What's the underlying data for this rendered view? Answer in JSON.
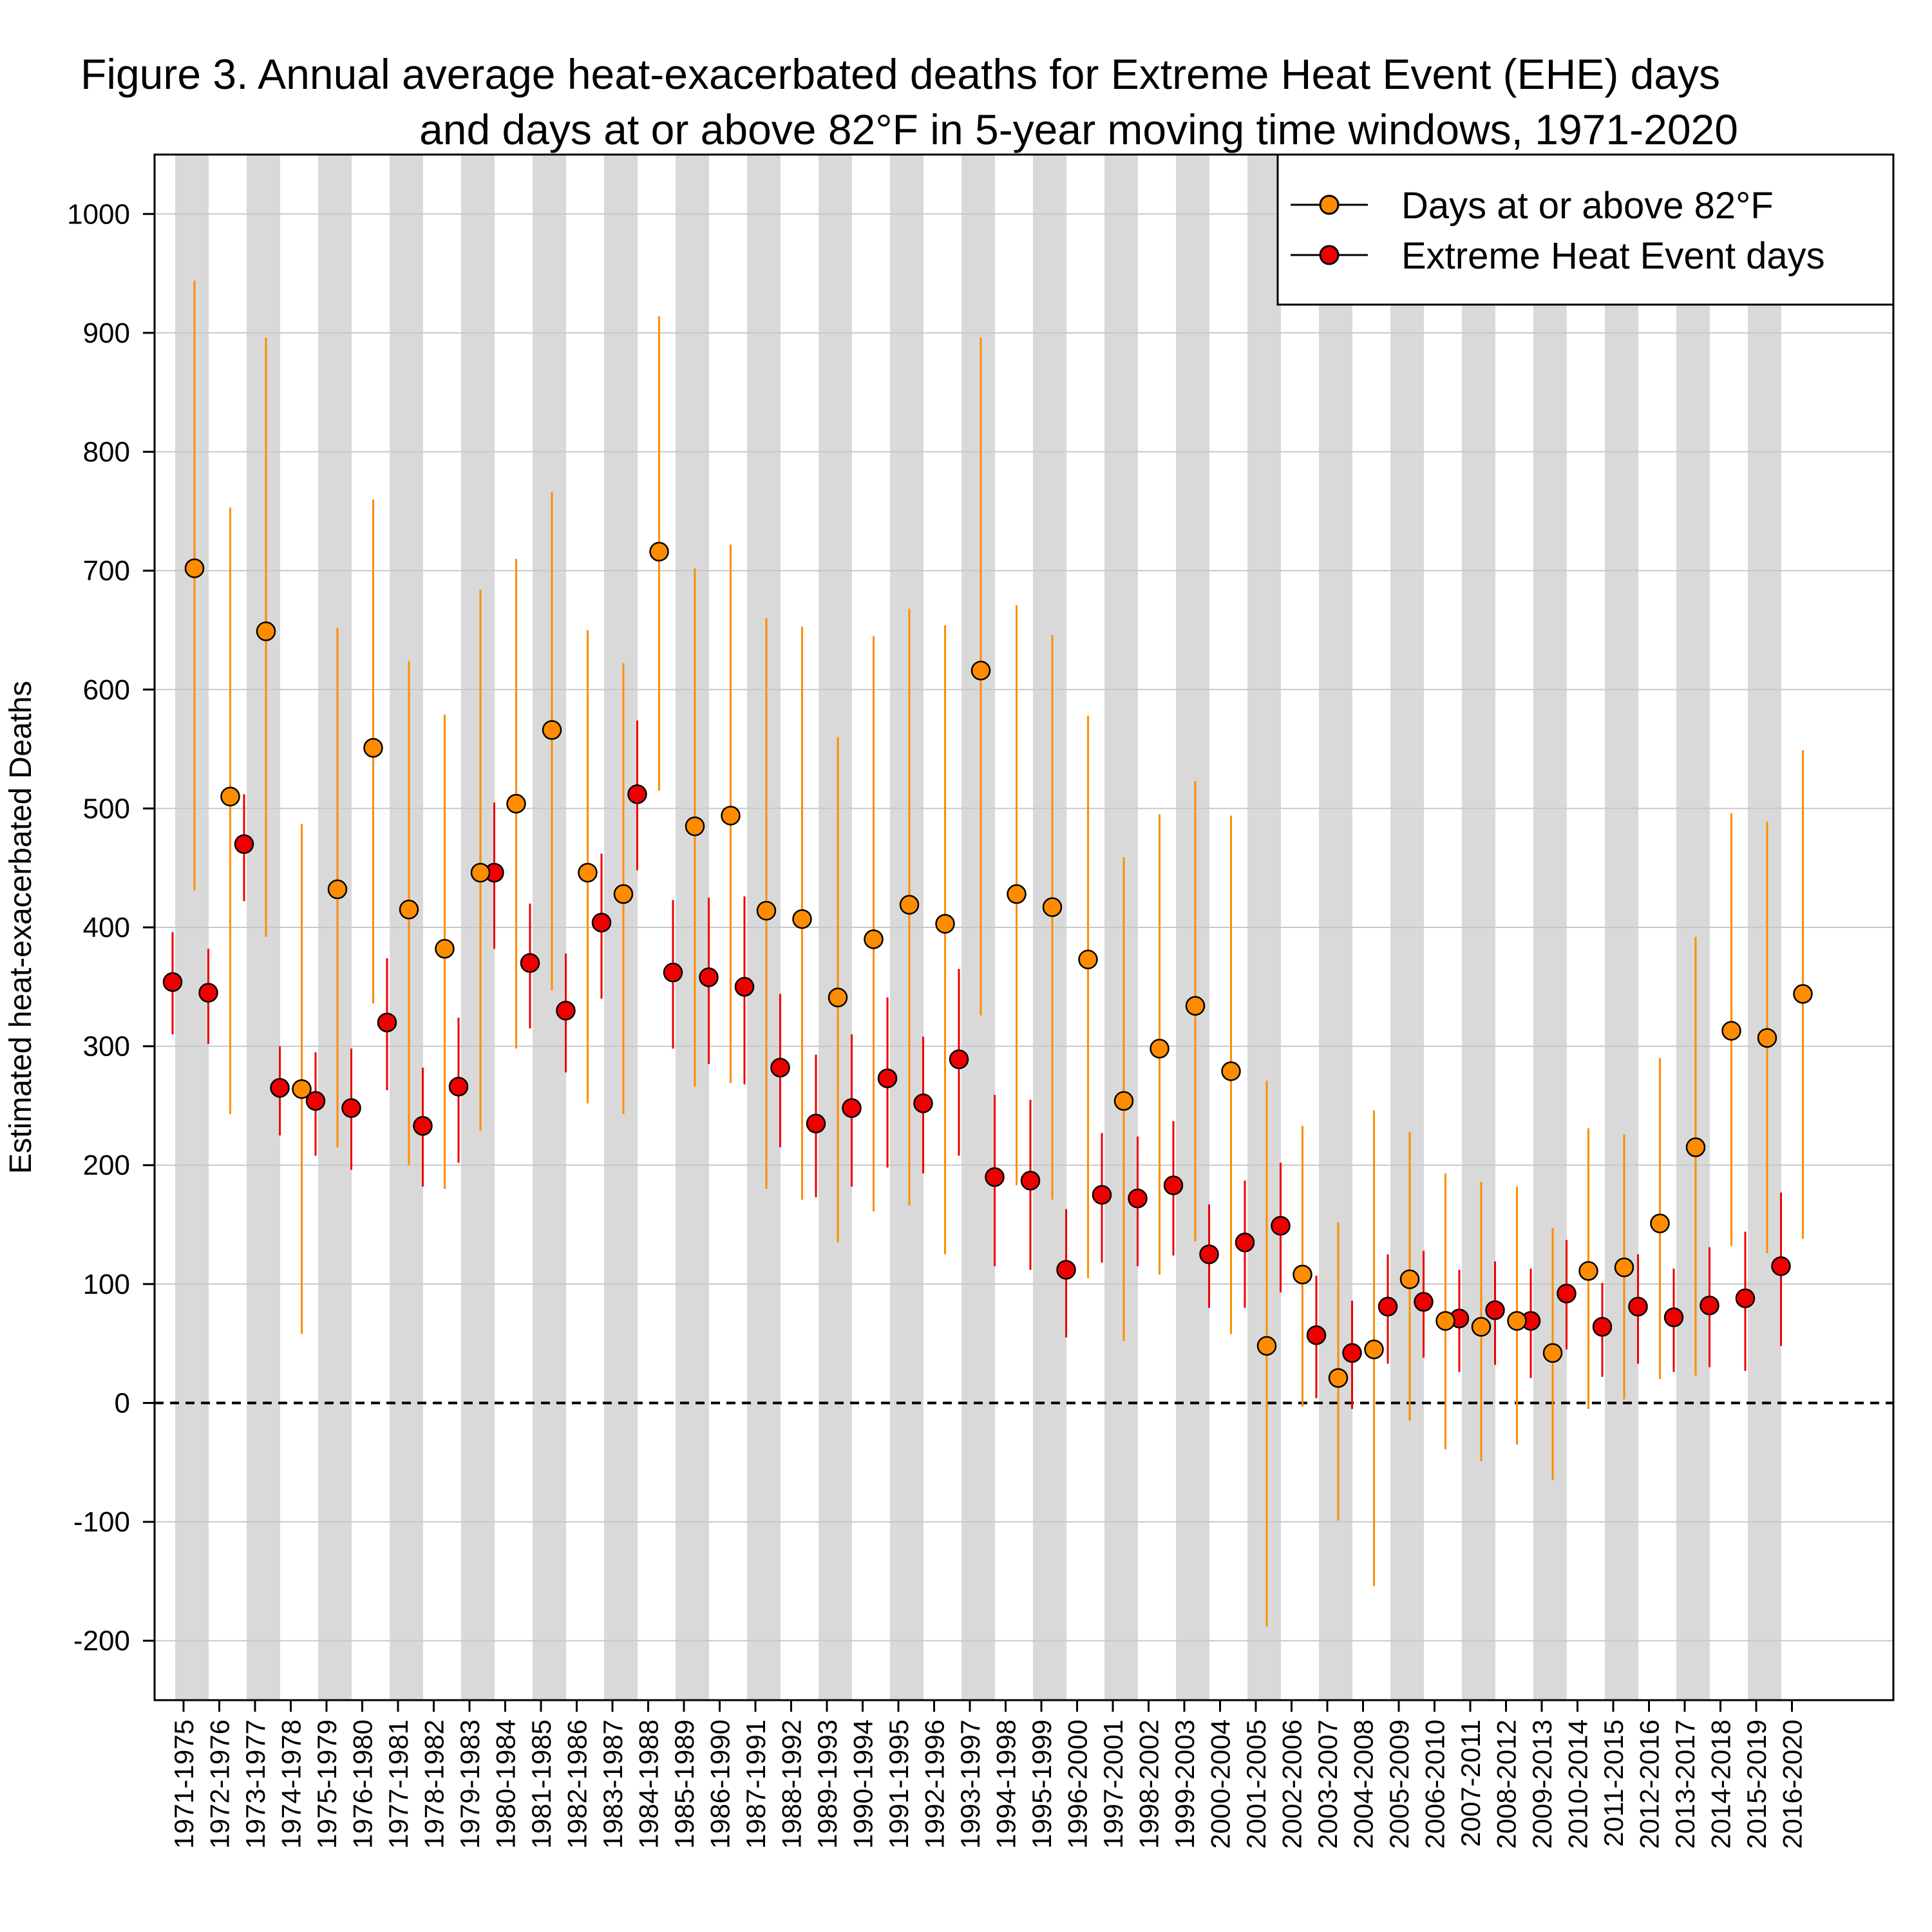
{
  "title_lines": [
    "Figure 3. Annual average heat-exacerbated deaths for Extreme Heat Event (EHE) days",
    "and days at or above 82°F in 5-year moving time windows, 1971-2020"
  ],
  "colors": {
    "orange": "#ff8c00",
    "red": "#ee0000",
    "band": "#d9d9d9",
    "grid": "#c8c8c8"
  },
  "chart_data": {
    "type": "scatter",
    "title": "Figure 3. Annual average heat-exacerbated deaths for Extreme Heat Event (EHE) days and days at or above 82°F in 5-year moving time windows, 1971-2020",
    "xlabel": "",
    "ylabel": "Estimated heat-exacerbated Deaths",
    "ylim": [
      -250,
      1050
    ],
    "yticks": [
      -200,
      -100,
      0,
      100,
      200,
      300,
      400,
      500,
      600,
      700,
      800,
      900,
      1000
    ],
    "grid": "horizontal",
    "zero_line": "dashed",
    "legend_position": "top-right",
    "legend": [
      "Days at or above 82°F",
      "Extreme Heat Event days"
    ],
    "categories": [
      "1971-1975",
      "1972-1976",
      "1973-1977",
      "1974-1978",
      "1975-1979",
      "1976-1980",
      "1977-1981",
      "1978-1982",
      "1979-1983",
      "1980-1984",
      "1981-1985",
      "1982-1986",
      "1983-1987",
      "1984-1988",
      "1985-1989",
      "1986-1990",
      "1987-1991",
      "1988-1992",
      "1989-1993",
      "1990-1994",
      "1991-1995",
      "1992-1996",
      "1993-1997",
      "1994-1998",
      "1995-1999",
      "1996-2000",
      "1997-2001",
      "1998-2002",
      "1999-2003",
      "2000-2004",
      "2001-2005",
      "2002-2006",
      "2003-2007",
      "2004-2008",
      "2005-2009",
      "2006-2010",
      "2007-2011",
      "2008-2012",
      "2009-2013",
      "2010-2014",
      "2011-2015",
      "2012-2016",
      "2013-2017",
      "2014-2018",
      "2015-2019",
      "2016-2020"
    ],
    "series": [
      {
        "name": "Extreme Heat Event days",
        "color": "#ee0000",
        "values": [
          354,
          345,
          470,
          265,
          254,
          248,
          320,
          233,
          266,
          446,
          370,
          330,
          404,
          512,
          362,
          358,
          350,
          282,
          235,
          248,
          273,
          252,
          289,
          190,
          187,
          112,
          175,
          172,
          183,
          125,
          135,
          149,
          57,
          42,
          81,
          85,
          71,
          78,
          69,
          92,
          64,
          81,
          72,
          82,
          88,
          115
        ],
        "lower": [
          310,
          302,
          422,
          225,
          208,
          196,
          263,
          182,
          202,
          382,
          315,
          278,
          340,
          448,
          298,
          285,
          268,
          215,
          173,
          182,
          198,
          193,
          208,
          115,
          112,
          55,
          118,
          115,
          124,
          80,
          80,
          93,
          4,
          -5,
          33,
          38,
          26,
          32,
          21,
          45,
          22,
          33,
          26,
          30,
          27,
          48
        ],
        "upper": [
          396,
          382,
          512,
          300,
          295,
          298,
          374,
          282,
          324,
          505,
          420,
          378,
          462,
          574,
          423,
          425,
          426,
          344,
          293,
          310,
          341,
          308,
          365,
          259,
          255,
          163,
          227,
          224,
          237,
          167,
          187,
          202,
          107,
          86,
          125,
          128,
          112,
          119,
          113,
          137,
          101,
          125,
          113,
          131,
          144,
          177
        ]
      },
      {
        "name": "Days at or above 82°F",
        "color": "#ff8c00",
        "values": [
          702,
          510,
          649,
          264,
          432,
          551,
          415,
          382,
          446,
          504,
          566,
          446,
          428,
          716,
          485,
          494,
          414,
          407,
          341,
          390,
          419,
          403,
          616,
          428,
          417,
          373,
          254,
          298,
          334,
          279,
          48,
          108,
          21,
          45,
          104,
          69,
          64,
          69,
          42,
          111,
          114,
          151,
          215,
          313,
          307,
          344
        ],
        "lower": [
          431,
          243,
          392,
          58,
          215,
          336,
          200,
          180,
          229,
          298,
          347,
          252,
          243,
          515,
          266,
          269,
          180,
          171,
          135,
          161,
          166,
          125,
          326,
          183,
          171,
          105,
          52,
          108,
          136,
          58,
          -188,
          -3,
          -99,
          -154,
          -15,
          -39,
          -49,
          -35,
          -65,
          -5,
          3,
          20,
          23,
          132,
          126,
          138
        ],
        "upper": [
          944,
          753,
          896,
          487,
          652,
          760,
          624,
          579,
          684,
          710,
          766,
          650,
          622,
          914,
          702,
          722,
          660,
          653,
          560,
          645,
          668,
          654,
          896,
          671,
          646,
          578,
          459,
          495,
          523,
          494,
          271,
          233,
          152,
          246,
          228,
          193,
          186,
          182,
          147,
          231,
          226,
          290,
          392,
          496,
          489,
          549
        ]
      }
    ]
  }
}
